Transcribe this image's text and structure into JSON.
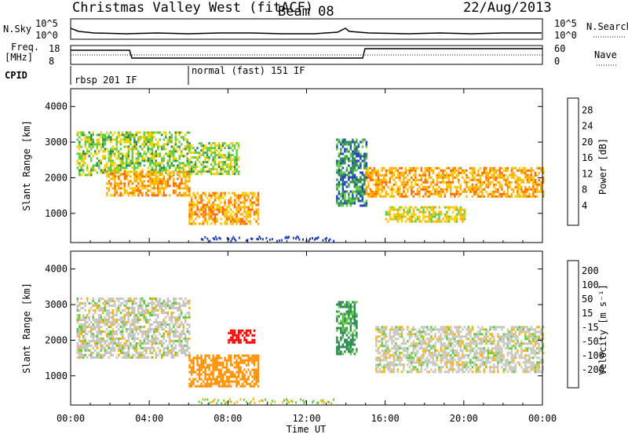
{
  "header": {
    "site": "Christmas Valley West (fitACF)",
    "beam": "Beam 08",
    "date": "22/Aug/2013"
  },
  "side_labels": {
    "nsky": "N.Sky",
    "freq_line1": "Freq.",
    "freq_line2": "[MHz]",
    "cpid": "CPID",
    "nsearch": "N.Search",
    "nave": "Nave"
  },
  "small_axes": {
    "nsky_top": "10^5",
    "nsky_bottom": "10^0",
    "nsearch_top": "10^5",
    "nsearch_bottom": "10^0",
    "freq_top": "18",
    "freq_bottom": "8",
    "nave_top": "60",
    "nave_bottom": "0"
  },
  "cpid_labels": [
    "rbsp 201 IF",
    "normal (fast) 151 IF"
  ],
  "panels": {
    "power": {
      "ylabel": "Slant Range [km]",
      "colorbar_label": "Power [dB]",
      "colorbar_ticks": [
        "28",
        "24",
        "20",
        "16",
        "12",
        "8",
        "4"
      ],
      "colorbar_colors": [
        "#ff0000",
        "#ff6a00",
        "#ffb000",
        "#f5d000",
        "#60cc40",
        "#2e8b57",
        "#2040c0",
        "#0000ff"
      ]
    },
    "velocity": {
      "ylabel": "Slant Range [km]",
      "colorbar_label": "Velocity [m s⁻¹]",
      "colorbar_ticks": [
        "200",
        "100",
        "50",
        "15",
        "-15",
        "-50",
        "-100",
        "-200"
      ],
      "colorbar_colors": [
        "#1030b0",
        "#3858c8",
        "#2e8b57",
        "#60cc40",
        "#c8c8c0",
        "#c8c8c0",
        "#ffb000",
        "#ff7a00",
        "#ff0000"
      ]
    }
  },
  "x_axis": {
    "label": "Time UT",
    "ticks": [
      "00:00",
      "04:00",
      "08:00",
      "12:00",
      "16:00",
      "20:00",
      "00:00"
    ]
  },
  "chart_data": [
    {
      "type": "heatmap",
      "title": "",
      "xlabel": "Time UT",
      "ylabel": "Slant Range [km]",
      "xlim": [
        0,
        24
      ],
      "ylim": [
        180,
        4500
      ],
      "yticks": [
        1000,
        2000,
        3000,
        4000
      ],
      "colorbar": {
        "label": "Power [dB]",
        "range": [
          0,
          30
        ],
        "ticks": [
          4,
          8,
          12,
          16,
          20,
          24,
          28
        ]
      },
      "bands": [
        {
          "t0": 0.3,
          "t1": 6.0,
          "r0": 2100,
          "r1": 3300,
          "value": 14
        },
        {
          "t0": 1.8,
          "t1": 6.0,
          "r0": 1500,
          "r1": 2200,
          "value": 22
        },
        {
          "t0": 6.0,
          "t1": 9.5,
          "r0": 700,
          "r1": 1600,
          "value": 22
        },
        {
          "t0": 6.0,
          "t1": 8.5,
          "r0": 2100,
          "r1": 3000,
          "value": 14
        },
        {
          "t0": 13.5,
          "t1": 15.0,
          "r0": 1200,
          "r1": 3100,
          "value": 8
        },
        {
          "t0": 15.0,
          "t1": 24.0,
          "r0": 1500,
          "r1": 2300,
          "value": 22
        },
        {
          "t0": 16.0,
          "t1": 20.0,
          "r0": 800,
          "r1": 1200,
          "value": 18
        }
      ]
    },
    {
      "type": "heatmap",
      "title": "",
      "xlabel": "Time UT",
      "ylabel": "Slant Range [km]",
      "xlim": [
        0,
        24
      ],
      "ylim": [
        180,
        4500
      ],
      "yticks": [
        1000,
        2000,
        3000,
        4000
      ],
      "colorbar": {
        "label": "Velocity [m s⁻¹]",
        "range": [
          -250,
          250
        ],
        "ticks": [
          200,
          100,
          50,
          15,
          -15,
          -50,
          -100,
          -200
        ]
      },
      "bands": [
        {
          "t0": 0.3,
          "t1": 6.0,
          "r0": 1500,
          "r1": 3200,
          "value": 0
        },
        {
          "t0": 6.0,
          "t1": 9.5,
          "r0": 700,
          "r1": 1600,
          "value": -80
        },
        {
          "t0": 8.0,
          "t1": 9.3,
          "r0": 1950,
          "r1": 2300,
          "value": -220
        },
        {
          "t0": 13.5,
          "t1": 14.5,
          "r0": 1600,
          "r1": 3100,
          "value": 40
        },
        {
          "t0": 15.5,
          "t1": 24.0,
          "r0": 1100,
          "r1": 2400,
          "value": 0
        }
      ]
    }
  ]
}
